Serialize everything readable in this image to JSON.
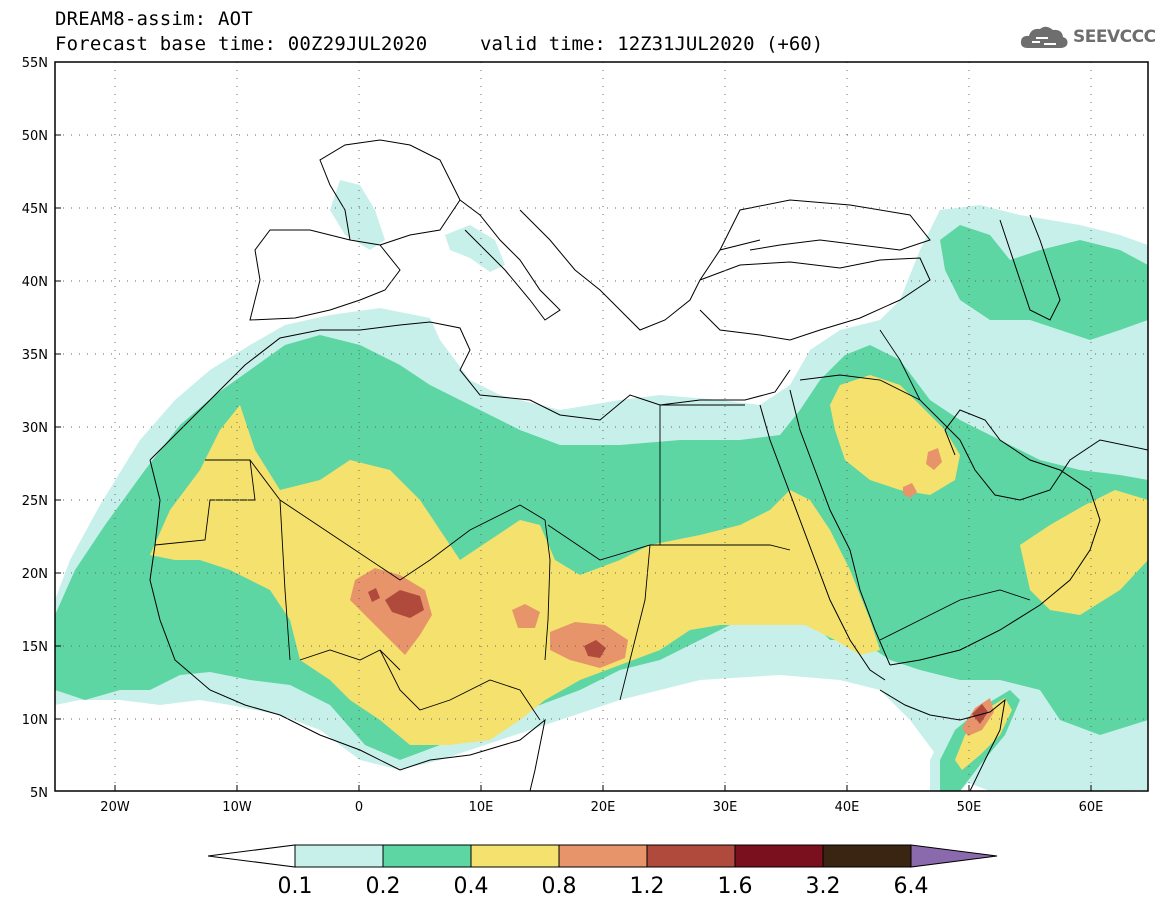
{
  "header": {
    "title_line1": "DREAM8-assim: AOT",
    "title_line2": "Forecast base time: 00Z29JUL2020",
    "valid_time": "valid time: 12Z31JUL2020 (+60)",
    "logo_text": "SEEVCCC"
  },
  "map": {
    "lat_labels": [
      "55N",
      "50N",
      "45N",
      "40N",
      "35N",
      "30N",
      "25N",
      "20N",
      "15N",
      "10N",
      "5N"
    ],
    "lon_labels": [
      "20W",
      "10W",
      "0",
      "10E",
      "20E",
      "30E",
      "40E",
      "50E",
      "60E"
    ]
  },
  "colorbar": {
    "labels": [
      "0.1",
      "0.2",
      "0.4",
      "0.8",
      "1.2",
      "1.6",
      "3.2",
      "6.4"
    ],
    "colors": [
      "#ffffff",
      "#c8f0ea",
      "#5ed6a4",
      "#f5e26e",
      "#e8946a",
      "#b04a3c",
      "#7a0f1e",
      "#3a2412",
      "#8a6aac"
    ]
  },
  "colors": {
    "aot_0_1": "#c8f0ea",
    "aot_0_2": "#5ed6a4",
    "aot_0_4": "#f5e26e",
    "aot_0_8": "#e8946a",
    "aot_1_2": "#b04a3c",
    "aot_1_6": "#7a0f1e",
    "aot_3_2": "#3a2412",
    "aot_6_4": "#8a6aac"
  }
}
